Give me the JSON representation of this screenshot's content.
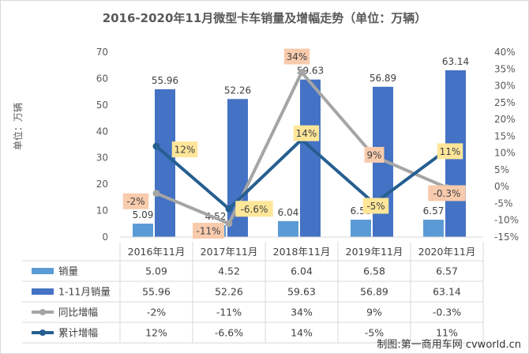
{
  "chart_data": {
    "type": "bar",
    "title": "2016-2020年11月微型卡车销量及增幅走势（单位：万辆）",
    "ylabel": "单位：万辆",
    "categories": [
      "2016年11月",
      "2017年11月",
      "2018年11月",
      "2019年11月",
      "2020年11月"
    ],
    "ylim": [
      0,
      70
    ],
    "yticks": [
      "0",
      "10",
      "20",
      "30",
      "40",
      "50",
      "60",
      "70"
    ],
    "y2lim": [
      -15,
      40
    ],
    "y2ticks": [
      "-15%",
      "-10%",
      "-5%",
      "0%",
      "5%",
      "10%",
      "15%",
      "20%",
      "25%",
      "30%",
      "35%",
      "40%"
    ],
    "series": [
      {
        "name": "销量",
        "kind": "bar",
        "axis": "left",
        "color": "#5b9bd5",
        "values": [
          5.09,
          4.52,
          6.04,
          6.58,
          6.57
        ],
        "labels": [
          "5.09",
          "4.52",
          "6.04",
          "6.58",
          "6.57"
        ],
        "table": [
          "5.09",
          "4.52",
          "6.04",
          "6.58",
          "6.57"
        ]
      },
      {
        "name": "1-11月销量",
        "kind": "bar",
        "axis": "left",
        "color": "#4472c4",
        "values": [
          55.96,
          52.26,
          59.63,
          56.89,
          63.14
        ],
        "labels": [
          "55.96",
          "52.26",
          "59.63",
          "56.89",
          "63.14"
        ],
        "table": [
          "55.96",
          "52.26",
          "59.63",
          "56.89",
          "63.14"
        ]
      },
      {
        "name": "同比增幅",
        "kind": "line",
        "axis": "right",
        "color": "#a5a5a5",
        "values": [
          -2,
          -11,
          34,
          9,
          -0.3
        ],
        "labels": [
          "-2%",
          "-11%",
          "34%",
          "9%",
          "-0.3%"
        ],
        "table": [
          "-2%",
          "-11%",
          "34%",
          "9%",
          "-0.3%"
        ]
      },
      {
        "name": "累计增幅",
        "kind": "line",
        "axis": "right",
        "color": "#255e91",
        "values": [
          12,
          -6.6,
          14,
          -5,
          11
        ],
        "labels": [
          "12%",
          "-6.6%",
          "14%",
          "-5%",
          "11%"
        ],
        "table": [
          "12%",
          "-6.6%",
          "14%",
          "-5%",
          "11%"
        ]
      }
    ],
    "grid": false,
    "legend": "data-table"
  },
  "watermark": "制图:第一商用车网 cvworld.cn"
}
